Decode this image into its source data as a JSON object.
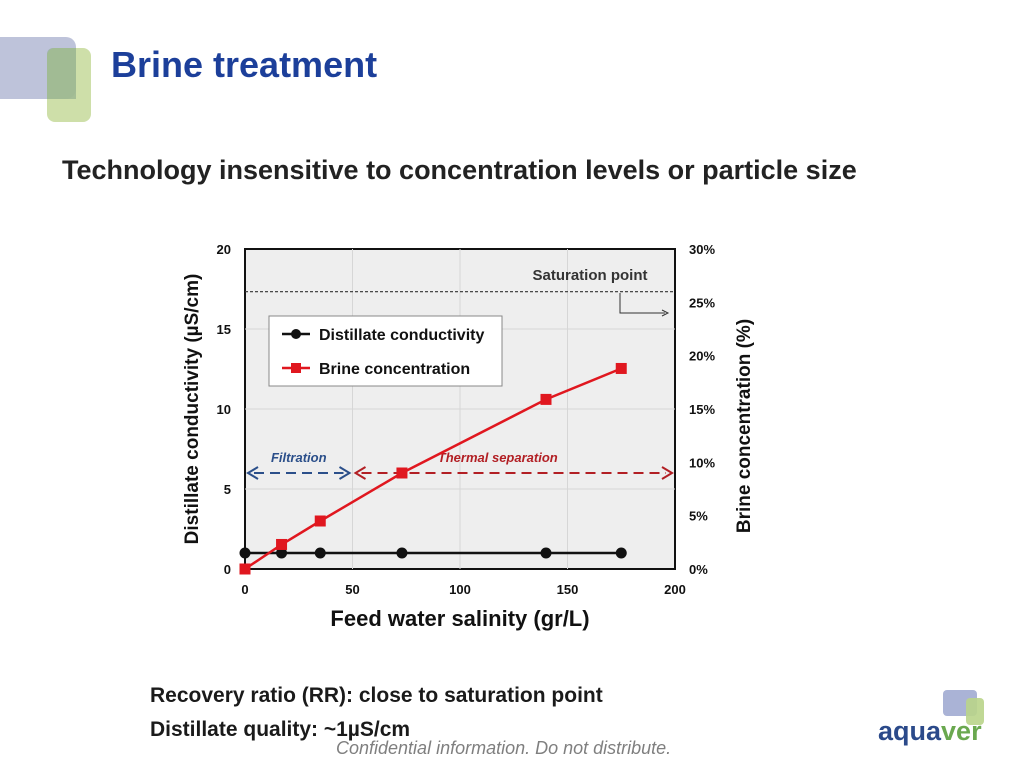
{
  "slide": {
    "title": "Brine treatment",
    "subtitle": "Technology insensitive to concentration levels or particle size",
    "bullets": [
      "Recovery ratio (RR): close to saturation point",
      "Distillate quality: ~1µS/cm"
    ],
    "footer": "Confidential information. Do not distribute.",
    "logo": {
      "part1": "aqua",
      "part2": "ver"
    }
  },
  "chart_data": {
    "type": "line",
    "xlabel": "Feed water salinity (gr/L)",
    "ylabel": "Distillate conductivity (µS/cm)",
    "y2label": "Brine concentration (%)",
    "xlim": [
      0,
      200
    ],
    "ylim": [
      0,
      20
    ],
    "y2lim": [
      0,
      30
    ],
    "xticks": [
      "0",
      "50",
      "100",
      "150",
      "200"
    ],
    "yticks": [
      "0",
      "5",
      "10",
      "15",
      "20"
    ],
    "y2ticks": [
      "0%",
      "5%",
      "10%",
      "15%",
      "20%",
      "25%",
      "30%"
    ],
    "legend_position": "top-left",
    "series": [
      {
        "name": "Distillate conductivity",
        "axis": "left",
        "marker": "circle",
        "color": "#111111",
        "x": [
          0,
          17,
          35,
          73,
          140,
          175
        ],
        "y": [
          1,
          1,
          1,
          1,
          1,
          1
        ]
      },
      {
        "name": "Brine concentration",
        "axis": "right",
        "marker": "square",
        "color": "#e0171f",
        "x": [
          0,
          17,
          35,
          73,
          140,
          175
        ],
        "y": [
          0,
          2.3,
          4.5,
          9,
          15.9,
          18.8
        ]
      }
    ],
    "reference_line": {
      "label": "Saturation point",
      "axis": "right",
      "value": 26
    },
    "regions": [
      {
        "label": "Filtration",
        "x_start": 0,
        "x_end": 50,
        "color": "#2b4f8a"
      },
      {
        "label": "Thermal separation",
        "x_start": 50,
        "x_end": 200,
        "color": "#b21f24"
      }
    ],
    "region_arrow_y": 6
  }
}
